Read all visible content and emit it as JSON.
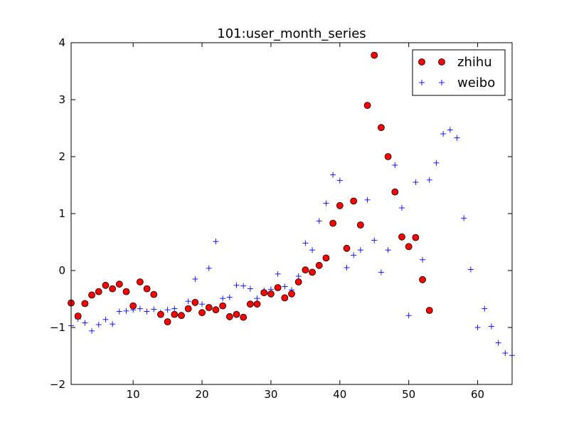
{
  "chart_data": {
    "type": "scatter",
    "title": "101:user_month_series",
    "xlabel": "",
    "ylabel": "",
    "xlim": [
      1,
      65
    ],
    "ylim": [
      -2,
      4
    ],
    "xticks": [
      10,
      20,
      30,
      40,
      50,
      60
    ],
    "yticks": [
      -2,
      -1,
      0,
      1,
      2,
      3,
      4
    ],
    "grid": false,
    "legend_position": "top-right",
    "series": [
      {
        "name": "zhihu",
        "marker": "circle",
        "color": "#ff0000",
        "x": [
          1,
          2,
          3,
          4,
          5,
          6,
          7,
          8,
          9,
          10,
          11,
          12,
          13,
          14,
          15,
          16,
          17,
          18,
          19,
          20,
          21,
          22,
          23,
          24,
          25,
          26,
          27,
          28,
          29,
          30,
          31,
          32,
          33,
          34,
          35,
          36,
          37,
          38,
          39,
          40,
          41,
          42,
          43,
          44,
          45,
          46,
          47,
          48,
          49,
          50,
          51,
          52,
          53
        ],
        "y": [
          -0.57,
          -0.8,
          -0.58,
          -0.43,
          -0.37,
          -0.26,
          -0.32,
          -0.24,
          -0.37,
          -0.62,
          -0.2,
          -0.32,
          -0.42,
          -0.77,
          -0.9,
          -0.77,
          -0.79,
          -0.67,
          -0.56,
          -0.74,
          -0.65,
          -0.69,
          -0.62,
          -0.81,
          -0.77,
          -0.82,
          -0.59,
          -0.59,
          -0.39,
          -0.41,
          -0.3,
          -0.48,
          -0.41,
          -0.2,
          0.01,
          -0.03,
          0.09,
          0.22,
          0.83,
          1.14,
          0.39,
          1.22,
          0.8,
          2.9,
          3.78,
          2.51,
          2.0,
          1.38,
          0.59,
          0.42,
          0.58,
          -0.16,
          -0.7
        ]
      },
      {
        "name": "weibo",
        "marker": "plus",
        "color": "#0000ff",
        "x": [
          1,
          2,
          3,
          4,
          5,
          6,
          7,
          8,
          9,
          10,
          11,
          12,
          13,
          14,
          15,
          16,
          17,
          18,
          19,
          20,
          21,
          22,
          23,
          24,
          25,
          26,
          27,
          28,
          29,
          30,
          31,
          32,
          33,
          34,
          35,
          36,
          37,
          38,
          39,
          40,
          41,
          42,
          43,
          44,
          45,
          46,
          47,
          48,
          49,
          50,
          51,
          52,
          53,
          54,
          55,
          56,
          57,
          58,
          59,
          60,
          61,
          62,
          63,
          64,
          65
        ],
        "y": [
          -0.97,
          -0.85,
          -0.92,
          -1.06,
          -0.95,
          -0.86,
          -0.94,
          -0.72,
          -0.71,
          -0.69,
          -0.67,
          -0.72,
          -0.68,
          -0.74,
          -0.69,
          -0.67,
          -0.79,
          -0.54,
          -0.15,
          -0.59,
          0.04,
          0.51,
          -0.49,
          -0.47,
          -0.26,
          -0.27,
          -0.32,
          -0.49,
          -0.35,
          -0.33,
          -0.06,
          -0.28,
          -0.34,
          -0.1,
          0.48,
          0.36,
          0.87,
          1.18,
          1.68,
          1.58,
          0.05,
          0.27,
          0.36,
          1.24,
          0.53,
          -0.03,
          0.36,
          1.85,
          1.1,
          -0.79,
          1.55,
          0.19,
          1.59,
          1.89,
          2.4,
          2.47,
          2.33,
          0.92,
          0.02,
          -1.0,
          -0.67,
          -0.98,
          -1.27,
          -1.45,
          -1.49
        ]
      }
    ]
  }
}
